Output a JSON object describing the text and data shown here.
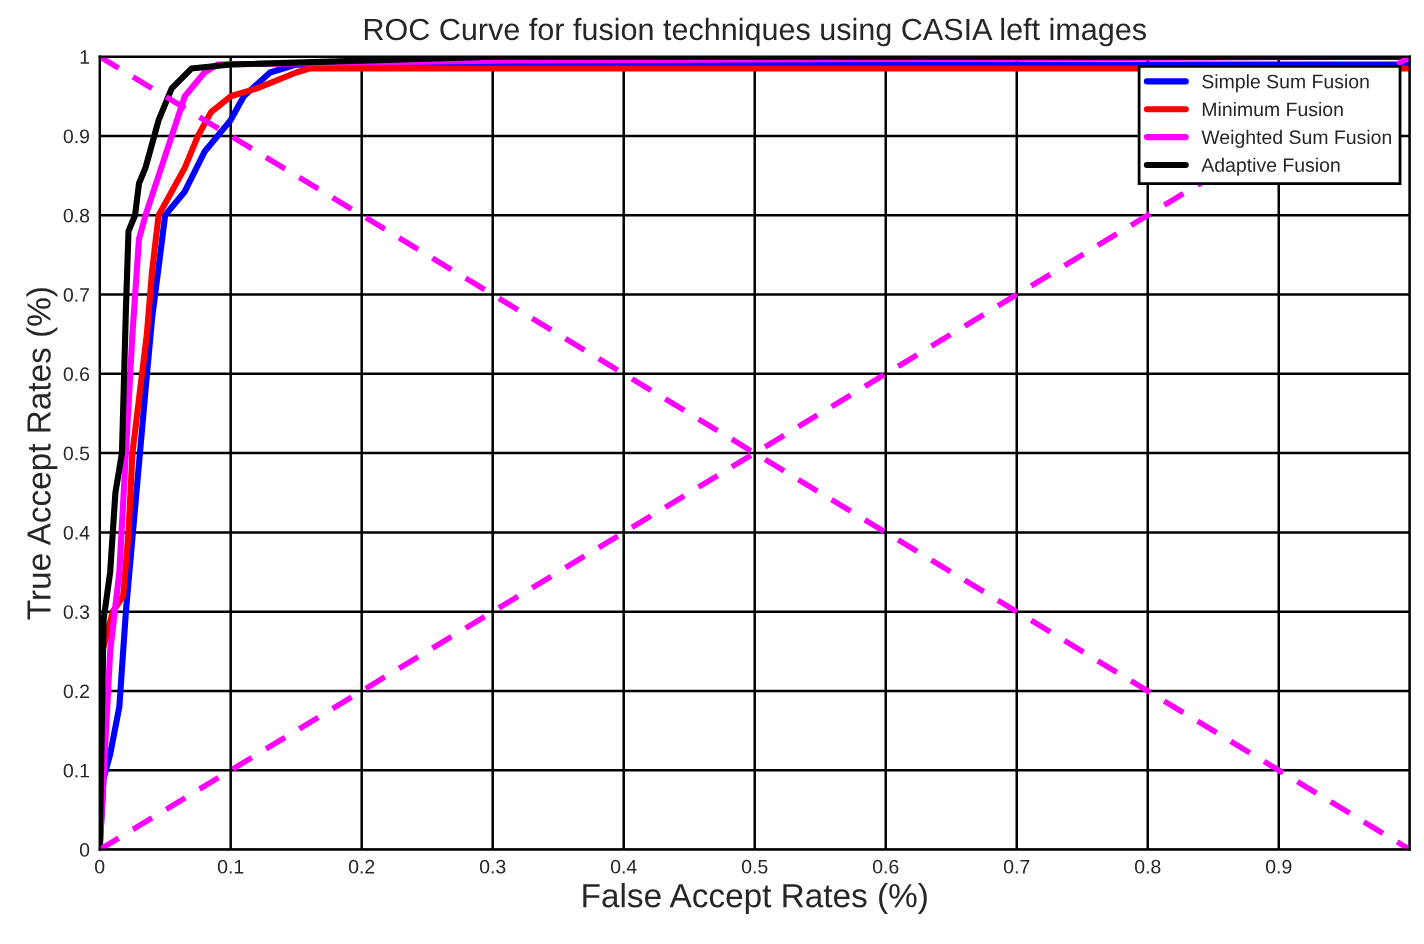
{
  "chart_data": {
    "type": "line",
    "title": "ROC Curve for fusion techniques using CASIA left images",
    "xlabel": "False Accept Rates (%)",
    "ylabel": "True Accept Rates (%)",
    "xlim": [
      0,
      1
    ],
    "ylim": [
      0,
      1
    ],
    "xticks": [
      0,
      0.1,
      0.2,
      0.3,
      0.4,
      0.5,
      0.6,
      0.7,
      0.8,
      0.9,
      {
        "value": 1,
        "label": null
      }
    ],
    "yticks": [
      0,
      0.1,
      0.2,
      0.3,
      0.4,
      0.5,
      0.6,
      0.7,
      0.8,
      0.9,
      1
    ],
    "grid": true,
    "legend": "top right",
    "line_style": "solid",
    "series": [
      {
        "name": "Simple Sum Fusion",
        "color": "#0000ff",
        "x": [
          0,
          0.003,
          0.008,
          0.015,
          0.02,
          0.035,
          0.04,
          0.05,
          0.065,
          0.08,
          0.1,
          0.11,
          0.13,
          0.15,
          0.3,
          1
        ],
        "values": [
          0,
          0.09,
          0.12,
          0.18,
          0.3,
          0.58,
          0.67,
          0.8,
          0.83,
          0.88,
          0.92,
          0.95,
          0.98,
          0.99,
          0.99,
          0.99
        ]
      },
      {
        "name": "Minimum Fusion",
        "color": "#ff0000",
        "x": [
          0,
          0.002,
          0.01,
          0.018,
          0.022,
          0.025,
          0.036,
          0.04,
          0.045,
          0.055,
          0.065,
          0.075,
          0.085,
          0.1,
          0.12,
          0.15,
          0.16,
          1
        ],
        "values": [
          0,
          0.25,
          0.3,
          0.32,
          0.4,
          0.5,
          0.65,
          0.73,
          0.8,
          0.83,
          0.86,
          0.9,
          0.93,
          0.95,
          0.96,
          0.98,
          0.985,
          0.985
        ]
      },
      {
        "name": "Weighted Sum Fusion",
        "color": "#ff00ff",
        "x": [
          0,
          0.008,
          0.015,
          0.02,
          0.025,
          0.03,
          0.035,
          0.045,
          0.055,
          0.065,
          0.08,
          0.09,
          0.3,
          1
        ],
        "values": [
          0,
          0.25,
          0.35,
          0.5,
          0.65,
          0.77,
          0.8,
          0.85,
          0.9,
          0.95,
          0.98,
          0.99,
          0.995,
          1
        ]
      },
      {
        "name": "Adaptive Fusion",
        "color": "#000000",
        "x": [
          0,
          0.003,
          0.008,
          0.012,
          0.017,
          0.02,
          0.022,
          0.027,
          0.03,
          0.035,
          0.04,
          0.045,
          0.055,
          0.07,
          0.1,
          0.3,
          1
        ],
        "values": [
          0,
          0.29,
          0.35,
          0.45,
          0.5,
          0.68,
          0.78,
          0.8,
          0.84,
          0.86,
          0.89,
          0.92,
          0.96,
          0.985,
          0.99,
          1,
          1
        ]
      },
      {
        "color": "#ff00ff",
        "line_style": "dashed",
        "x": [
          0,
          1
        ],
        "values": [
          0,
          1
        ]
      },
      {
        "color": "#ff00ff",
        "line_style": "dashed",
        "x": [
          0,
          1
        ],
        "values": [
          1,
          0
        ]
      }
    ]
  }
}
